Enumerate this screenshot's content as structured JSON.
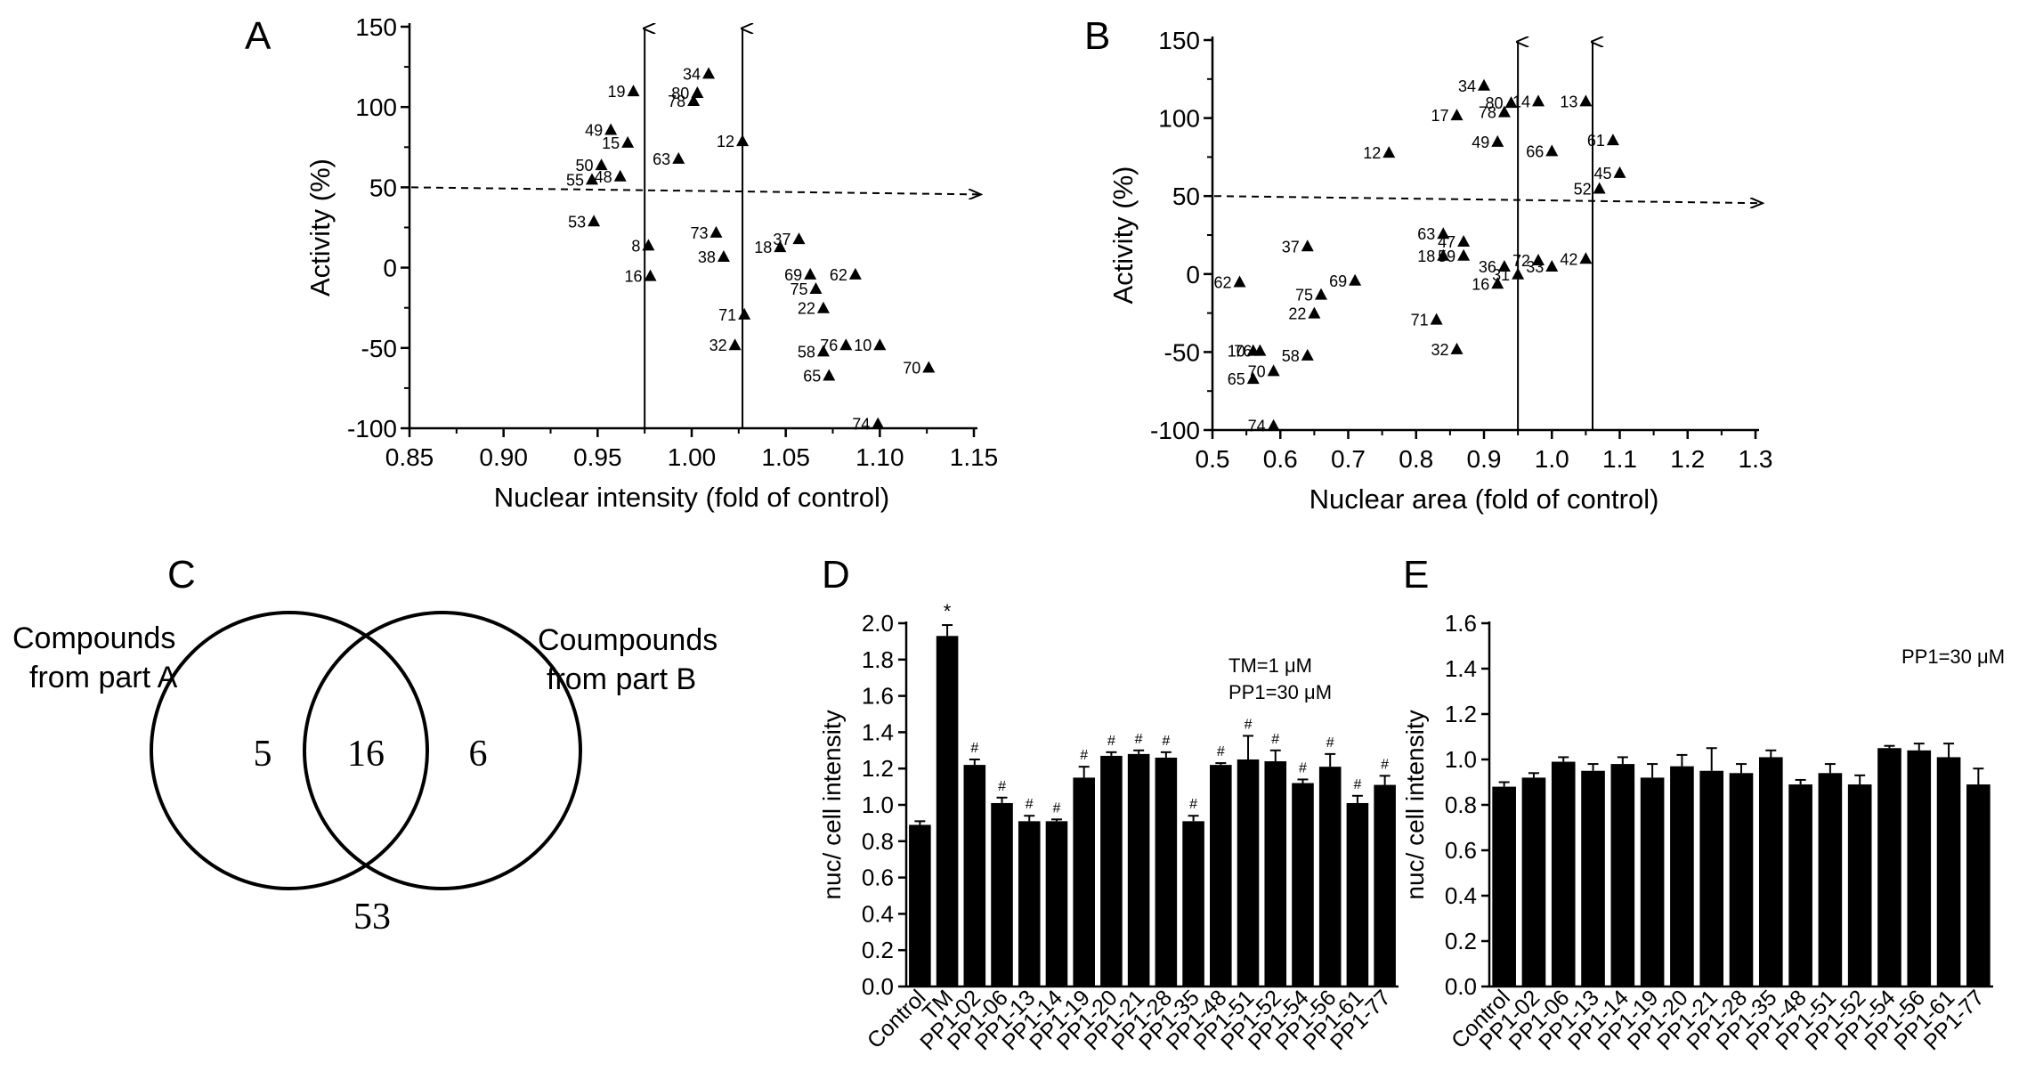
{
  "panels": {
    "A": {
      "letter": "A"
    },
    "B": {
      "letter": "B"
    },
    "C": {
      "letter": "C"
    },
    "D": {
      "letter": "D"
    },
    "E": {
      "letter": "E"
    }
  },
  "chart_data": [
    {
      "id": "A",
      "type": "scatter",
      "xlabel": "Nuclear intensity (fold of control)",
      "ylabel": "Activity (%)",
      "xlim": [
        0.85,
        1.15
      ],
      "ylim": [
        -100,
        150
      ],
      "xticks": [
        "0.85",
        "0.90",
        "0.95",
        "1.00",
        "1.05",
        "1.10",
        "1.15"
      ],
      "yticks": [
        "-100",
        "-50",
        "0",
        "50",
        "100",
        "150"
      ],
      "vlines": [
        0.975,
        1.027
      ],
      "hline": 50,
      "points": [
        {
          "label": "34",
          "x": 1.009,
          "y": 121
        },
        {
          "label": "19",
          "x": 0.969,
          "y": 110
        },
        {
          "label": "80",
          "x": 1.003,
          "y": 109
        },
        {
          "label": "78",
          "x": 1.001,
          "y": 104
        },
        {
          "label": "49",
          "x": 0.957,
          "y": 86
        },
        {
          "label": "15",
          "x": 0.966,
          "y": 78
        },
        {
          "label": "12",
          "x": 1.027,
          "y": 79
        },
        {
          "label": "50",
          "x": 0.952,
          "y": 64
        },
        {
          "label": "55",
          "x": 0.947,
          "y": 55
        },
        {
          "label": "48",
          "x": 0.962,
          "y": 57
        },
        {
          "label": "63",
          "x": 0.993,
          "y": 68
        },
        {
          "label": "53",
          "x": 0.948,
          "y": 29
        },
        {
          "label": "8",
          "x": 0.977,
          "y": 14
        },
        {
          "label": "16",
          "x": 0.978,
          "y": -5
        },
        {
          "label": "18",
          "x": 1.047,
          "y": 13
        },
        {
          "label": "37",
          "x": 1.057,
          "y": 18
        },
        {
          "label": "73",
          "x": 1.013,
          "y": 22
        },
        {
          "label": "38",
          "x": 1.017,
          "y": 7
        },
        {
          "label": "69",
          "x": 1.063,
          "y": -4
        },
        {
          "label": "75",
          "x": 1.066,
          "y": -13
        },
        {
          "label": "62",
          "x": 1.087,
          "y": -4
        },
        {
          "label": "22",
          "x": 1.07,
          "y": -25
        },
        {
          "label": "71",
          "x": 1.028,
          "y": -29
        },
        {
          "label": "32",
          "x": 1.023,
          "y": -48
        },
        {
          "label": "58",
          "x": 1.07,
          "y": -52
        },
        {
          "label": "76",
          "x": 1.082,
          "y": -48
        },
        {
          "label": "10",
          "x": 1.1,
          "y": -48
        },
        {
          "label": "70",
          "x": 1.126,
          "y": -62
        },
        {
          "label": "65",
          "x": 1.073,
          "y": -67
        },
        {
          "label": "74",
          "x": 1.099,
          "y": -97
        }
      ]
    },
    {
      "id": "B",
      "type": "scatter",
      "xlabel": "Nuclear area (fold of control)",
      "ylabel": "Activity (%)",
      "xlim": [
        0.5,
        1.3
      ],
      "ylim": [
        -100,
        150
      ],
      "xticks": [
        "0.5",
        "0.6",
        "0.7",
        "0.8",
        "0.9",
        "1.0",
        "1.1",
        "1.2",
        "1.3"
      ],
      "yticks": [
        "-100",
        "-50",
        "0",
        "50",
        "100",
        "150"
      ],
      "vlines": [
        0.95,
        1.06
      ],
      "hline": 50,
      "points": [
        {
          "label": "34",
          "x": 0.9,
          "y": 121
        },
        {
          "label": "80",
          "x": 0.94,
          "y": 110
        },
        {
          "label": "14",
          "x": 0.98,
          "y": 111
        },
        {
          "label": "13",
          "x": 1.05,
          "y": 111
        },
        {
          "label": "78",
          "x": 0.93,
          "y": 104
        },
        {
          "label": "17",
          "x": 0.86,
          "y": 102
        },
        {
          "label": "12",
          "x": 0.76,
          "y": 78
        },
        {
          "label": "49",
          "x": 0.92,
          "y": 85
        },
        {
          "label": "61",
          "x": 1.09,
          "y": 86
        },
        {
          "label": "66",
          "x": 1.0,
          "y": 79
        },
        {
          "label": "45",
          "x": 1.1,
          "y": 65
        },
        {
          "label": "52",
          "x": 1.07,
          "y": 55
        },
        {
          "label": "63",
          "x": 0.84,
          "y": 26
        },
        {
          "label": "47",
          "x": 0.87,
          "y": 21
        },
        {
          "label": "18",
          "x": 0.84,
          "y": 12
        },
        {
          "label": "59",
          "x": 0.87,
          "y": 12
        },
        {
          "label": "37",
          "x": 0.64,
          "y": 18
        },
        {
          "label": "62",
          "x": 0.54,
          "y": -5
        },
        {
          "label": "69",
          "x": 0.71,
          "y": -4
        },
        {
          "label": "75",
          "x": 0.66,
          "y": -13
        },
        {
          "label": "22",
          "x": 0.65,
          "y": -25
        },
        {
          "label": "36",
          "x": 0.93,
          "y": 5
        },
        {
          "label": "16",
          "x": 0.92,
          "y": -6
        },
        {
          "label": "31",
          "x": 0.95,
          "y": 0
        },
        {
          "label": "72",
          "x": 0.98,
          "y": 9
        },
        {
          "label": "33",
          "x": 1.0,
          "y": 5
        },
        {
          "label": "42",
          "x": 1.05,
          "y": 10
        },
        {
          "label": "71",
          "x": 0.83,
          "y": -29
        },
        {
          "label": "32",
          "x": 0.86,
          "y": -48
        },
        {
          "label": "10",
          "x": 0.56,
          "y": -49
        },
        {
          "label": "76",
          "x": 0.57,
          "y": -49
        },
        {
          "label": "58",
          "x": 0.64,
          "y": -52
        },
        {
          "label": "70",
          "x": 0.59,
          "y": -62
        },
        {
          "label": "65",
          "x": 0.56,
          "y": -67
        },
        {
          "label": "74",
          "x": 0.59,
          "y": -97
        }
      ]
    },
    {
      "id": "D",
      "type": "bar",
      "ylabel": "nuc/ cell intensity",
      "ylim": [
        0,
        2.0
      ],
      "yticks": [
        "0.0",
        "0.2",
        "0.4",
        "0.6",
        "0.8",
        "1.0",
        "1.2",
        "1.4",
        "1.6",
        "1.8",
        "2.0"
      ],
      "annotations": [
        "TM=1 μM",
        "PP1=30 μM"
      ],
      "categories": [
        "Control",
        "TM",
        "PP1-02",
        "PP1-06",
        "PP1-13",
        "PP1-14",
        "PP1-19",
        "PP1-20",
        "PP1-21",
        "PP1-28",
        "PP1-35",
        "PP1-48",
        "PP1-51",
        "PP1-52",
        "PP1-54",
        "PP1-56",
        "PP1-61",
        "PP1-77"
      ],
      "values": [
        0.89,
        1.93,
        1.22,
        1.01,
        0.91,
        0.91,
        1.15,
        1.27,
        1.28,
        1.26,
        0.91,
        1.22,
        1.25,
        1.24,
        1.12,
        1.21,
        1.01,
        1.11
      ],
      "errors": [
        0.02,
        0.06,
        0.03,
        0.03,
        0.03,
        0.01,
        0.06,
        0.02,
        0.02,
        0.03,
        0.03,
        0.01,
        0.13,
        0.06,
        0.02,
        0.07,
        0.04,
        0.05
      ],
      "marks": [
        "",
        "*",
        "#",
        "#",
        "#",
        "#",
        "#",
        "#",
        "#",
        "#",
        "#",
        "#",
        "#",
        "#",
        "#",
        "#",
        "#",
        "#"
      ]
    },
    {
      "id": "E",
      "type": "bar",
      "ylabel": "nuc/ cell intensity",
      "ylim": [
        0,
        1.6
      ],
      "yticks": [
        "0.0",
        "0.2",
        "0.4",
        "0.6",
        "0.8",
        "1.0",
        "1.2",
        "1.4",
        "1.6"
      ],
      "annotations": [
        "PP1=30 μM"
      ],
      "categories": [
        "Control",
        "PP1-02",
        "PP1-06",
        "PP1-13",
        "PP1-14",
        "PP1-19",
        "PP1-20",
        "PP1-21",
        "PP1-28",
        "PP1-35",
        "PP1-48",
        "PP1-51",
        "PP1-52",
        "PP1-54",
        "PP1-56",
        "PP1-61",
        "PP1-77"
      ],
      "values": [
        0.88,
        0.92,
        0.99,
        0.95,
        0.98,
        0.92,
        0.97,
        0.95,
        0.94,
        1.01,
        0.89,
        0.94,
        0.89,
        1.05,
        1.04,
        1.01,
        0.89
      ],
      "errors": [
        0.02,
        0.02,
        0.02,
        0.03,
        0.03,
        0.06,
        0.05,
        0.1,
        0.04,
        0.03,
        0.02,
        0.04,
        0.04,
        0.01,
        0.03,
        0.06,
        0.07
      ]
    },
    {
      "id": "C",
      "type": "venn",
      "sets": [
        "Compounds from part A",
        "Coumpounds from part B"
      ],
      "set_labels": {
        "a": [
          "Compounds",
          "from part A"
        ],
        "b": [
          "Coumpounds",
          "from part B"
        ]
      },
      "only_a": "5",
      "both": "16",
      "only_b": "6",
      "neither": "53"
    }
  ]
}
